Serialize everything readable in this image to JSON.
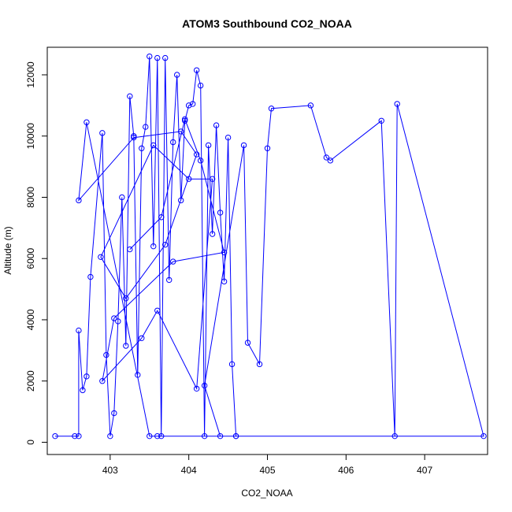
{
  "chart_data": {
    "type": "line",
    "title": "ATOM3 Southbound CO2_NOAA",
    "xlabel": "CO2_NOAA",
    "ylabel": "Altitude (m)",
    "xlim": [
      402.2,
      407.8
    ],
    "ylim": [
      -400,
      12900
    ],
    "x_ticks": [
      403,
      404,
      405,
      406,
      407
    ],
    "y_ticks": [
      0,
      2000,
      4000,
      6000,
      8000,
      10000,
      12000
    ],
    "grid": false,
    "legend": "none",
    "line_color": "#0000ff",
    "marker": "open-circle",
    "series": [
      {
        "x": [
          402.3,
          402.55,
          402.6,
          402.6,
          402.65,
          402.7,
          402.75,
          402.9,
          402.95,
          403.0,
          403.05,
          403.1,
          403.15,
          403.2,
          403.25,
          403.3,
          403.35,
          403.4,
          403.45,
          403.5,
          403.55,
          403.6,
          403.65,
          403.7,
          403.75,
          403.8,
          403.85,
          403.9,
          403.95,
          404.0,
          404.05,
          404.1,
          404.15,
          404.2,
          404.25,
          404.3,
          404.35,
          404.4,
          404.45,
          404.5,
          404.55,
          404.6,
          404.4,
          404.2,
          404.7,
          404.75,
          404.9,
          405.0,
          405.05,
          405.55,
          405.75,
          405.8,
          406.45,
          406.62,
          406.65,
          407.75,
          404.6,
          403.6,
          403.5,
          402.7,
          402.6,
          403.3,
          403.9,
          404.1,
          403.7,
          403.2,
          402.88,
          403.55,
          404.0,
          404.3,
          404.1,
          403.6,
          403.4,
          402.9,
          403.05,
          403.8,
          404.45,
          404.15,
          403.95,
          403.65,
          403.25
        ],
        "y": [
          200,
          200,
          200,
          3650,
          1700,
          2150,
          5400,
          10100,
          2850,
          200,
          950,
          3950,
          8000,
          3150,
          11300,
          10000,
          2200,
          9600,
          10300,
          12600,
          6400,
          12550,
          200,
          12550,
          5300,
          9800,
          12000,
          7900,
          10500,
          11000,
          11050,
          12150,
          11650,
          200,
          9700,
          6800,
          10350,
          7500,
          5250,
          9950,
          2550,
          200,
          200,
          1850,
          9700,
          3250,
          2550,
          9600,
          10900,
          11000,
          9300,
          9200,
          10500,
          200,
          11050,
          200,
          200,
          200,
          200,
          10450,
          7900,
          9950,
          10150,
          9400,
          6450,
          4700,
          6050,
          9700,
          8600,
          8600,
          1750,
          4300,
          3400,
          2000,
          4050,
          5900,
          6200,
          9200,
          10550,
          7350,
          6300
        ]
      }
    ]
  }
}
